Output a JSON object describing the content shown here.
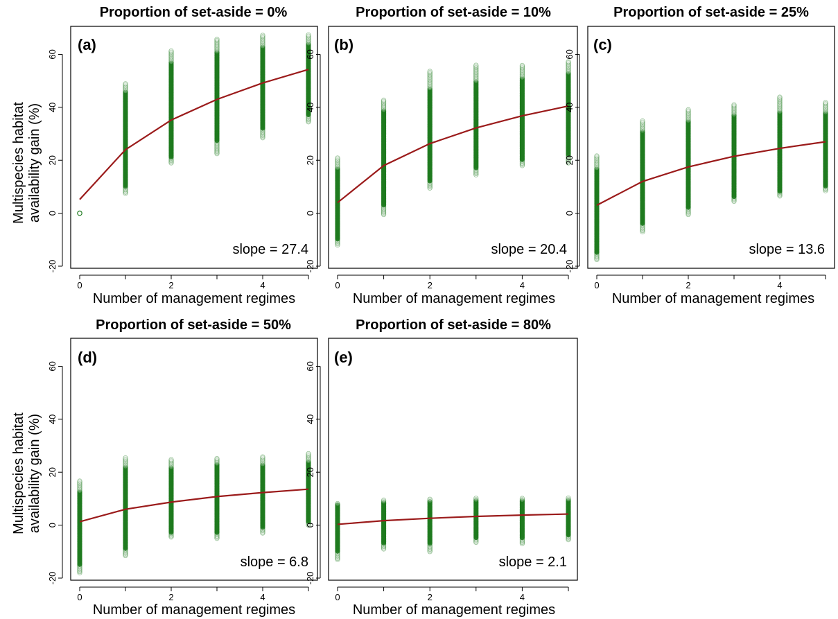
{
  "figure": {
    "ylabel_line1": "Multispecies habitat",
    "ylabel_line2": "availability gain (%)",
    "colors": {
      "points": "#1f7a1f",
      "points_fill": "#e8f3e8",
      "line": "#9b1b1b",
      "axis": "#000000"
    }
  },
  "chart_data": [
    {
      "type": "scatter",
      "panel_label": "(a)",
      "title": "Proportion of set-aside = 0%",
      "xlabel": "Number of management regimes",
      "ylabel": "Multispecies habitat availability gain (%)",
      "xlim": [
        0,
        5
      ],
      "ylim": [
        -20,
        70
      ],
      "x_ticks": [
        0,
        2,
        4
      ],
      "y_ticks": [
        -20,
        0,
        20,
        40,
        60
      ],
      "grid": false,
      "x": [
        0,
        1,
        2,
        3,
        4,
        5
      ],
      "y_min": [
        0,
        7.5,
        19,
        22.5,
        28.5,
        34.5
      ],
      "y_max": [
        0,
        49,
        61.5,
        66,
        67.5,
        67.5
      ],
      "dense_min": [
        0,
        10,
        21,
        27,
        32,
        37
      ],
      "dense_max": [
        0,
        46,
        57,
        61,
        63,
        64
      ],
      "fitted_line": [
        5.2,
        24,
        35.2,
        43,
        49.2,
        54.3
      ],
      "slope_text": "slope = 27.4"
    },
    {
      "type": "scatter",
      "panel_label": "(b)",
      "title": "Proportion of set-aside = 10%",
      "xlabel": "Number of management regimes",
      "ylabel": "",
      "xlim": [
        0,
        5
      ],
      "ylim": [
        -20,
        70
      ],
      "x_ticks": [
        0,
        2,
        4
      ],
      "y_ticks": [
        -20,
        0,
        20,
        40,
        60
      ],
      "grid": false,
      "x": [
        0,
        1,
        2,
        3,
        4,
        5
      ],
      "y_min": [
        -12,
        -0.5,
        9.5,
        14.5,
        18,
        19
      ],
      "y_max": [
        21,
        43,
        54,
        56,
        56,
        57.5
      ],
      "dense_min": [
        -10,
        3,
        12,
        17,
        20,
        22
      ],
      "dense_max": [
        17,
        39,
        47,
        50,
        51,
        53
      ],
      "fitted_line": [
        4,
        18,
        26.3,
        32.2,
        36.8,
        40.5
      ],
      "slope_text": "slope = 20.4"
    },
    {
      "type": "scatter",
      "panel_label": "(c)",
      "title": "Proportion of set-aside = 25%",
      "xlabel": "Number of management regimes",
      "ylabel": "",
      "xlim": [
        0,
        5
      ],
      "ylim": [
        -20,
        70
      ],
      "x_ticks": [
        0,
        2,
        4
      ],
      "y_ticks": [
        -20,
        0,
        20,
        40,
        60
      ],
      "grid": false,
      "x": [
        0,
        1,
        2,
        3,
        4,
        5
      ],
      "y_min": [
        -17.5,
        -7,
        -0.5,
        4.5,
        6.5,
        8.5
      ],
      "y_max": [
        22,
        35,
        39.5,
        41,
        44,
        42
      ],
      "dense_min": [
        -15,
        -4,
        2,
        6,
        8,
        10
      ],
      "dense_max": [
        17,
        31,
        35,
        37,
        38,
        38
      ],
      "fitted_line": [
        3,
        12,
        17.5,
        21.5,
        24.5,
        27
      ],
      "slope_text": "slope = 13.6"
    },
    {
      "type": "scatter",
      "panel_label": "(d)",
      "title": "Proportion of set-aside = 50%",
      "xlabel": "Number of management regimes",
      "ylabel": "Multispecies habitat availability gain (%)",
      "xlim": [
        0,
        5
      ],
      "ylim": [
        -20,
        70
      ],
      "x_ticks": [
        0,
        2,
        4
      ],
      "y_ticks": [
        -20,
        0,
        20,
        40,
        60
      ],
      "grid": false,
      "x": [
        0,
        1,
        2,
        3,
        4,
        5
      ],
      "y_min": [
        -18,
        -11.5,
        -4.5,
        -5,
        -3,
        0
      ],
      "y_max": [
        17,
        25.5,
        25,
        25.5,
        26,
        27
      ],
      "dense_min": [
        -15,
        -9,
        -3,
        -3,
        -1,
        1
      ],
      "dense_max": [
        13,
        22,
        22,
        23,
        23,
        24
      ],
      "fitted_line": [
        1.3,
        6,
        8.7,
        10.8,
        12.3,
        13.6
      ],
      "slope_text": "slope = 6.8"
    },
    {
      "type": "scatter",
      "panel_label": "(e)",
      "title": "Proportion of set-aside = 80%",
      "xlabel": "Number of management regimes",
      "ylabel": "",
      "xlim": [
        0,
        5
      ],
      "ylim": [
        -20,
        70
      ],
      "x_ticks": [
        0,
        2,
        4
      ],
      "y_ticks": [
        -20,
        0,
        20,
        40,
        60
      ],
      "grid": false,
      "x": [
        0,
        1,
        2,
        3,
        4,
        5
      ],
      "y_min": [
        -13,
        -9,
        -10,
        -6.5,
        -7,
        -5.5
      ],
      "y_max": [
        8.5,
        9.5,
        10,
        10.5,
        10.5,
        10.5
      ],
      "dense_min": [
        -10,
        -7,
        -7,
        -5,
        -5,
        -4
      ],
      "dense_max": [
        8,
        9,
        9,
        9.5,
        9.5,
        9.5
      ],
      "fitted_line": [
        0.3,
        1.7,
        2.6,
        3.3,
        3.8,
        4.2
      ],
      "slope_text": "slope = 2.1"
    }
  ]
}
